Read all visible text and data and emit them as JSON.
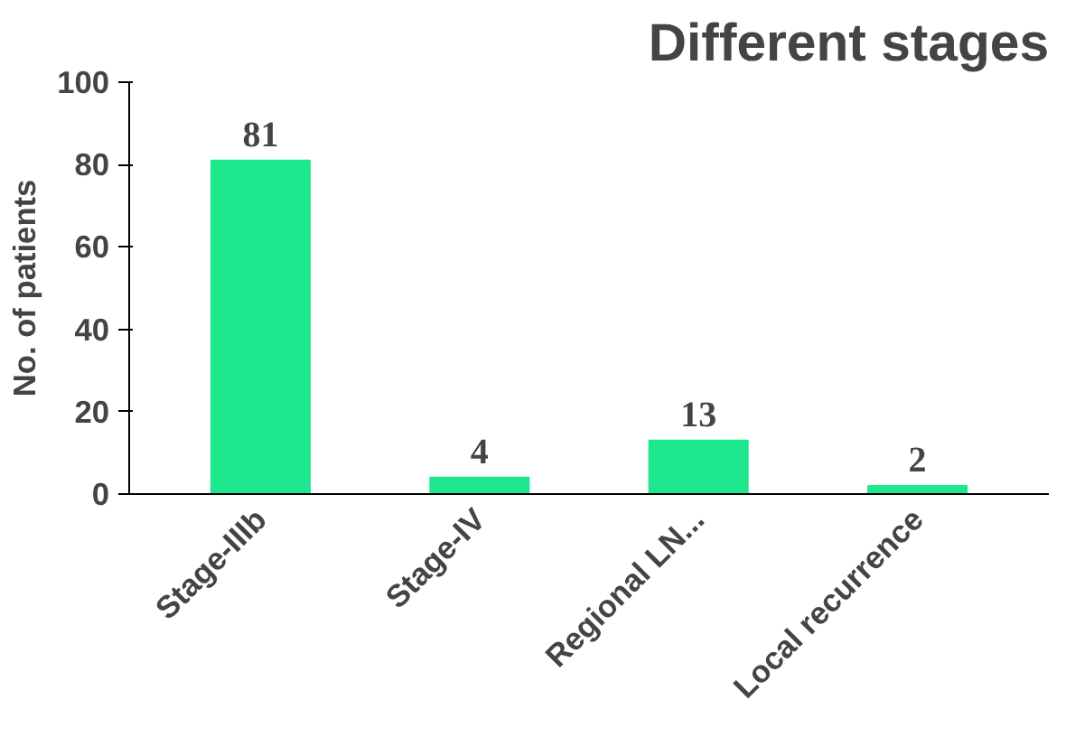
{
  "chart_data": {
    "type": "bar",
    "title": "Different stages",
    "ylabel": "No. of patients",
    "categories": [
      "Stage-IIIb",
      "Stage-IV",
      "Regional LN...",
      "Local recurrence"
    ],
    "values": [
      81,
      4,
      13,
      2
    ],
    "color": "#1de88e",
    "ylim": [
      0,
      100
    ],
    "yticks": [
      0,
      20,
      40,
      60,
      80,
      100
    ],
    "data_labels": true,
    "grid": false
  }
}
